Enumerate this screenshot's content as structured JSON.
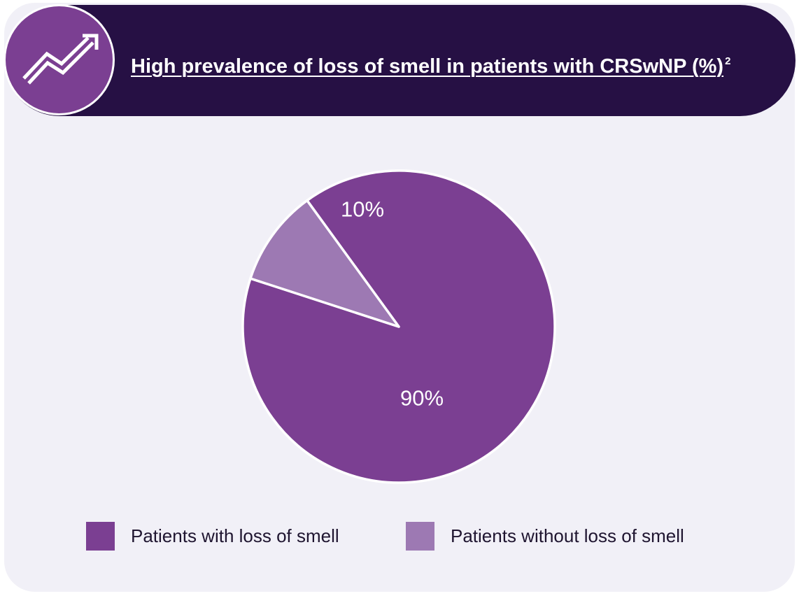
{
  "header": {
    "title": "High prevalence of loss of smell in patients with CRSwNP (%)",
    "title_superscript": "2",
    "icon": "trending-up-arrow-icon"
  },
  "colors": {
    "card_background": "#f1f0f7",
    "header_background": "#261044",
    "icon_background": "#7b3f92",
    "with_loss": "#7b3f92",
    "without_loss": "#9d79b3"
  },
  "chart_data": {
    "type": "pie",
    "title": "High prevalence of loss of smell in patients with CRSwNP (%)",
    "slices": [
      {
        "label": "Patients with loss of smell",
        "value": 90,
        "display": "90%",
        "color": "#7b3f92"
      },
      {
        "label": "Patients without loss of smell",
        "value": 10,
        "display": "10%",
        "color": "#9d79b3"
      }
    ],
    "legend_position": "bottom"
  }
}
